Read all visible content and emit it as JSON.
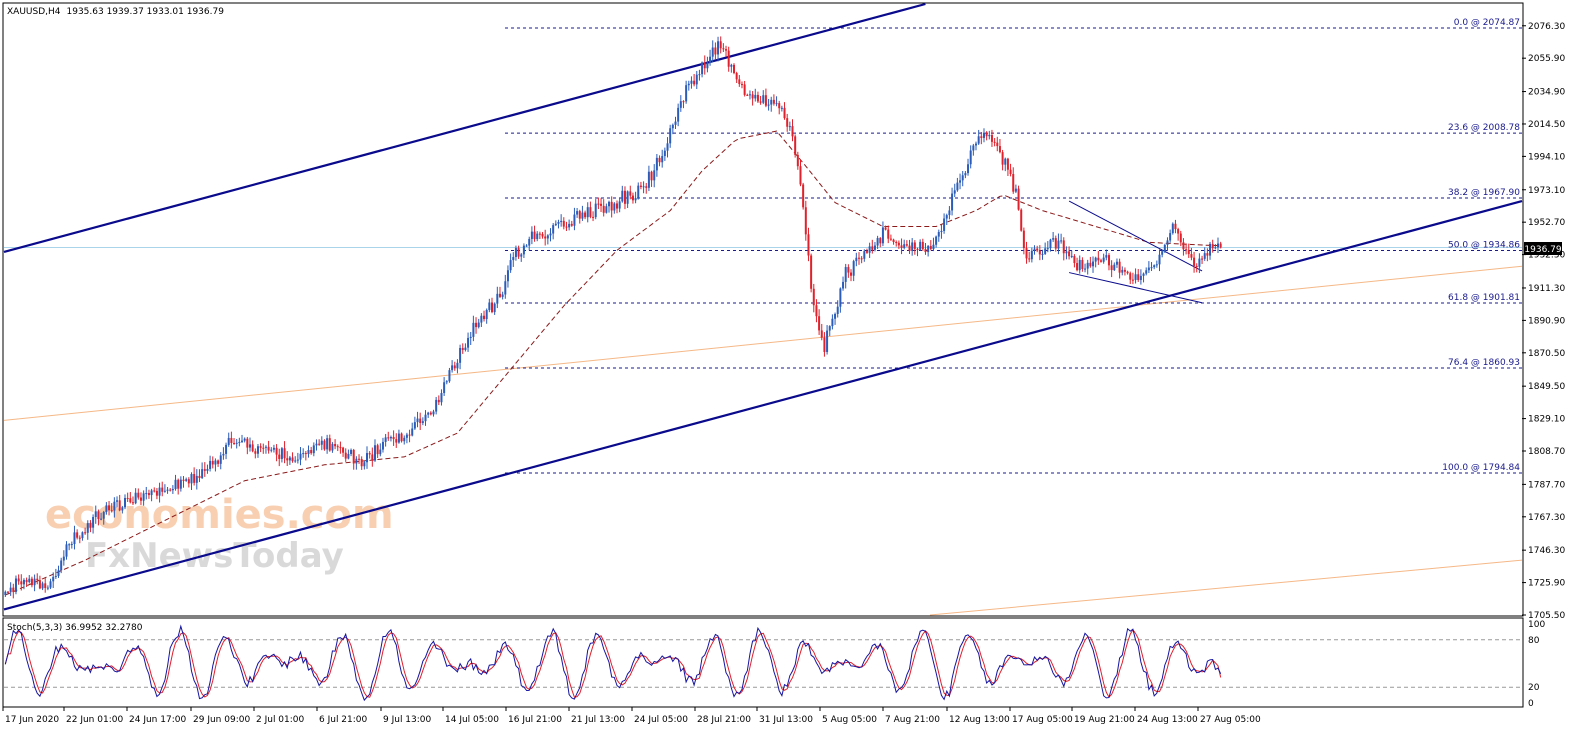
{
  "header": {
    "symbol": "XAUUSD,H4",
    "ohlc": "1935.63 1939.37 1933.01 1936.79"
  },
  "watermark": {
    "line1": "economies.com",
    "line2": "FxNewsToday"
  },
  "colors": {
    "bull": "#2a5cb8",
    "bear": "#e0202a",
    "channel": "#0a0a8c",
    "fib": "#1a1a8c",
    "ma": "#8b1a1a",
    "thin_trend": "#f5b887",
    "price_line": "#a9d4ea",
    "stoch_main": "#1515a0",
    "stoch_signal": "#e0202a"
  },
  "price_marker": "1936.79",
  "chart_data": {
    "type": "candlestick",
    "symbol": "XAUUSD",
    "timeframe": "H4",
    "ylim": [
      1705.5,
      2090
    ],
    "y_ticks": [
      "2076.30",
      "2055.90",
      "2034.90",
      "2014.50",
      "1994.10",
      "1973.10",
      "1952.70",
      "1932.30",
      "1911.30",
      "1890.90",
      "1870.50",
      "1849.50",
      "1829.10",
      "1808.70",
      "1787.70",
      "1767.30",
      "1746.30",
      "1725.90",
      "1705.50"
    ],
    "x_tick_labels": [
      "17 Jun 2020",
      "22 Jun 01:00",
      "24 Jun 17:00",
      "29 Jun 09:00",
      "2 Jul 01:00",
      "6 Jul 21:00",
      "9 Jul 13:00",
      "14 Jul 05:00",
      "16 Jul 21:00",
      "21 Jul 13:00",
      "24 Jul 05:00",
      "28 Jul 21:00",
      "31 Jul 13:00",
      "5 Aug 05:00",
      "7 Aug 21:00",
      "12 Aug 13:00",
      "17 Aug 05:00",
      "19 Aug 21:00",
      "24 Aug 13:00",
      "27 Aug 05:00"
    ],
    "last_price": 1936.79,
    "fibonacci": [
      {
        "label": "0.0 @ 2074.87",
        "price": 2074.87
      },
      {
        "label": "23.6 @ 2008.78",
        "price": 2008.78
      },
      {
        "label": "38.2 @ 1967.90",
        "price": 1967.9
      },
      {
        "label": "50.0 @ 1934.86",
        "price": 1934.86
      },
      {
        "label": "61.8 @ 1901.81",
        "price": 1901.81
      },
      {
        "label": "76.4 @ 1860.93",
        "price": 1860.93
      },
      {
        "label": "100.0 @ 1794.84",
        "price": 1794.84
      }
    ],
    "trend_channel": {
      "lower_line": {
        "from": [
          0,
          1709
        ],
        "to": [
          1,
          1966
        ]
      },
      "upper_line_start": 1934
    },
    "close_path": [
      [
        0,
        1720
      ],
      [
        8,
        1728
      ],
      [
        16,
        1725
      ],
      [
        24,
        1750
      ],
      [
        30,
        1760
      ],
      [
        36,
        1770
      ],
      [
        44,
        1775
      ],
      [
        52,
        1780
      ],
      [
        60,
        1785
      ],
      [
        70,
        1790
      ],
      [
        78,
        1800
      ],
      [
        85,
        1815
      ],
      [
        90,
        1812
      ],
      [
        96,
        1808
      ],
      [
        104,
        1806
      ],
      [
        110,
        1804
      ],
      [
        118,
        1812
      ],
      [
        124,
        1813
      ],
      [
        128,
        1808
      ],
      [
        134,
        1800
      ],
      [
        140,
        1810
      ],
      [
        150,
        1820
      ],
      [
        160,
        1830
      ],
      [
        168,
        1860
      ],
      [
        174,
        1880
      ],
      [
        180,
        1895
      ],
      [
        186,
        1905
      ],
      [
        190,
        1930
      ],
      [
        196,
        1940
      ],
      [
        200,
        1945
      ],
      [
        208,
        1950
      ],
      [
        214,
        1955
      ],
      [
        222,
        1960
      ],
      [
        228,
        1962
      ],
      [
        232,
        1968
      ],
      [
        238,
        1972
      ],
      [
        244,
        1985
      ],
      [
        250,
        2010
      ],
      [
        256,
        2035
      ],
      [
        262,
        2050
      ],
      [
        268,
        2065
      ],
      [
        272,
        2055
      ],
      [
        278,
        2035
      ],
      [
        284,
        2030
      ],
      [
        290,
        2030
      ],
      [
        296,
        2010
      ],
      [
        300,
        1960
      ],
      [
        304,
        1900
      ],
      [
        308,
        1875
      ],
      [
        312,
        1895
      ],
      [
        316,
        1920
      ],
      [
        322,
        1930
      ],
      [
        330,
        1945
      ],
      [
        338,
        1940
      ],
      [
        346,
        1935
      ],
      [
        352,
        1950
      ],
      [
        358,
        1975
      ],
      [
        364,
        2000
      ],
      [
        370,
        2010
      ],
      [
        376,
        1990
      ],
      [
        380,
        1970
      ],
      [
        384,
        1930
      ],
      [
        390,
        1935
      ],
      [
        396,
        1940
      ],
      [
        402,
        1925
      ],
      [
        410,
        1930
      ],
      [
        418,
        1925
      ],
      [
        424,
        1918
      ],
      [
        430,
        1920
      ],
      [
        436,
        1940
      ],
      [
        440,
        1950
      ],
      [
        444,
        1935
      ],
      [
        448,
        1925
      ],
      [
        454,
        1936.79
      ]
    ],
    "moving_average": [
      [
        0,
        1718
      ],
      [
        30,
        1740
      ],
      [
        60,
        1765
      ],
      [
        90,
        1790
      ],
      [
        120,
        1800
      ],
      [
        150,
        1805
      ],
      [
        170,
        1820
      ],
      [
        190,
        1860
      ],
      [
        210,
        1900
      ],
      [
        230,
        1935
      ],
      [
        250,
        1960
      ],
      [
        262,
        1985
      ],
      [
        275,
        2005
      ],
      [
        290,
        2010
      ],
      [
        300,
        1990
      ],
      [
        312,
        1965
      ],
      [
        330,
        1950
      ],
      [
        350,
        1950
      ],
      [
        365,
        1960
      ],
      [
        375,
        1970
      ],
      [
        390,
        1960
      ],
      [
        410,
        1950
      ],
      [
        430,
        1940
      ],
      [
        454,
        1938
      ]
    ],
    "stochastic": {
      "title": "Stoch(5,3,3) 36.9952 32.2780",
      "k": 36.9952,
      "d": 32.278,
      "ylim": [
        0,
        100
      ],
      "y_ticks": [
        "100",
        "80",
        "20",
        "0"
      ],
      "levels": [
        80,
        20
      ]
    }
  }
}
